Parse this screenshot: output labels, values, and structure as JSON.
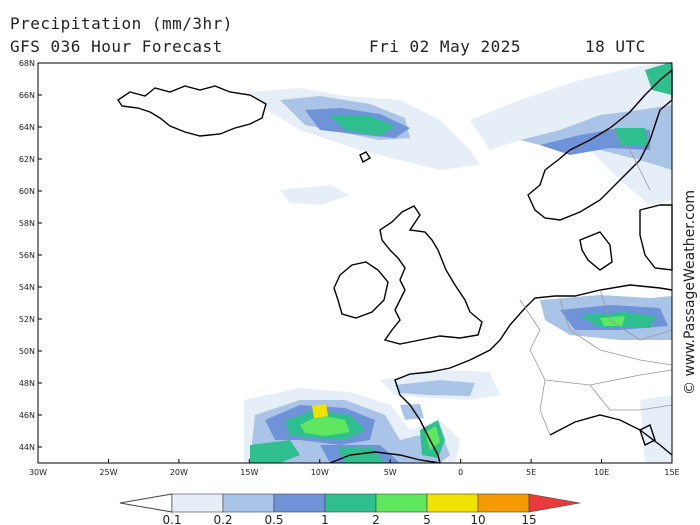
{
  "header": {
    "title": "Precipitation (mm/3hr)",
    "subtitle": "GFS 036 Hour Forecast",
    "date": "Fri 02 May 2025",
    "time": "18 UTC"
  },
  "map": {
    "lon_range": [
      -30,
      15
    ],
    "lat_range": [
      43,
      68
    ],
    "lon_ticks": [
      "30W",
      "25W",
      "20W",
      "15W",
      "10W",
      "5W",
      "0",
      "5E",
      "10E",
      "15E"
    ],
    "lat_ticks": [
      "68N",
      "66N",
      "64N",
      "62N",
      "60N",
      "58N",
      "56N",
      "54N",
      "52N",
      "50N",
      "48N",
      "46N",
      "44N"
    ]
  },
  "legend": {
    "labels": [
      "0.1",
      "0.2",
      "0.5",
      "1",
      "2",
      "5",
      "10",
      "15"
    ],
    "colors": [
      "#e6eef8",
      "#a9c4e6",
      "#6f93d8",
      "#2fbf8f",
      "#5fe85f",
      "#f2e200",
      "#f59a00",
      "#e83a3a"
    ]
  },
  "copyright": "© www.PassageWeather.com"
}
